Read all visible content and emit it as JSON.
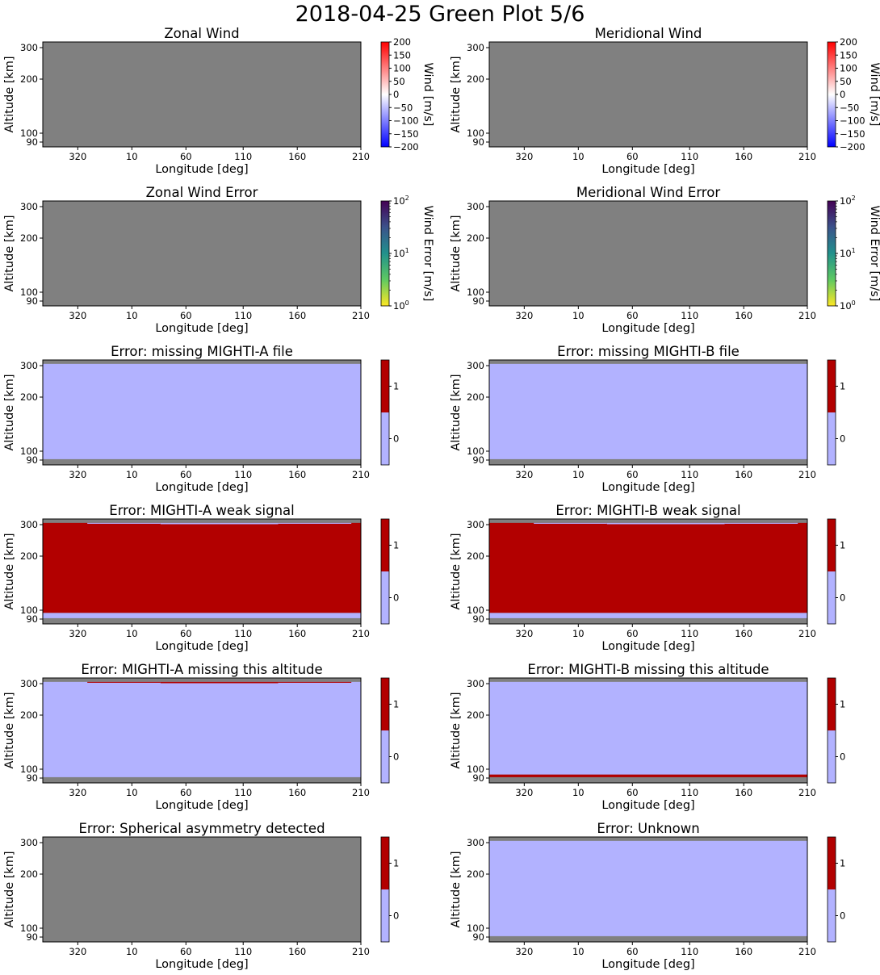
{
  "figure": {
    "title": "2018-04-25 Green Plot 5/6"
  },
  "colors": {
    "missing": "#808080",
    "flag_off": "#b2b2ff",
    "flag_on": "#b20000",
    "frame": "#000000"
  },
  "colormaps": {
    "wind": [
      "#0000ff",
      "#ffffff",
      "#ff0000"
    ],
    "wind_error": [
      "#fde725",
      "#5ec962",
      "#21918c",
      "#3b528b",
      "#440154"
    ],
    "flag": [
      "#b2b2ff",
      "#b20000"
    ]
  },
  "chart_data": [
    {
      "type": "heatmap",
      "title": "Zonal Wind",
      "xlabel": "Longitude [deg]",
      "ylabel": "Altitude [km]",
      "xticks": [
        "320",
        "10",
        "60",
        "110",
        "160",
        "210"
      ],
      "yticks": [
        "90",
        "100",
        "200",
        "300"
      ],
      "ylim": [
        88,
        313
      ],
      "fill": "missing",
      "bands": [],
      "colorbar": {
        "label": "Wind [m/s]",
        "cmap": "wind",
        "scale": "linear",
        "range": [
          -200,
          200
        ],
        "ticks": [
          "200",
          "150",
          "100",
          "50",
          "0",
          "−50",
          "−100",
          "−150",
          "−200"
        ]
      }
    },
    {
      "type": "heatmap",
      "title": "Meridional Wind",
      "xlabel": "Longitude [deg]",
      "ylabel": "Altitude [km]",
      "xticks": [
        "320",
        "10",
        "60",
        "110",
        "160",
        "210"
      ],
      "yticks": [
        "90",
        "100",
        "200",
        "300"
      ],
      "ylim": [
        88,
        313
      ],
      "fill": "missing",
      "bands": [],
      "colorbar": {
        "label": "Wind [m/s]",
        "cmap": "wind",
        "scale": "linear",
        "range": [
          -200,
          200
        ],
        "ticks": [
          "200",
          "150",
          "100",
          "50",
          "0",
          "−50",
          "−100",
          "−150",
          "−200"
        ]
      }
    },
    {
      "type": "heatmap",
      "title": "Zonal Wind Error",
      "xlabel": "Longitude [deg]",
      "ylabel": "Altitude [km]",
      "xticks": [
        "320",
        "10",
        "60",
        "110",
        "160",
        "210"
      ],
      "yticks": [
        "90",
        "100",
        "200",
        "300"
      ],
      "ylim": [
        88,
        313
      ],
      "fill": "missing",
      "bands": [],
      "colorbar": {
        "label": "Wind Error [m/s]",
        "cmap": "wind_error",
        "scale": "log",
        "range": [
          1,
          100
        ],
        "ticks": [
          "10^2",
          "10^1",
          "10^0"
        ]
      }
    },
    {
      "type": "heatmap",
      "title": "Meridional Wind Error",
      "xlabel": "Longitude [deg]",
      "ylabel": "Altitude [km]",
      "xticks": [
        "320",
        "10",
        "60",
        "110",
        "160",
        "210"
      ],
      "yticks": [
        "90",
        "100",
        "200",
        "300"
      ],
      "ylim": [
        88,
        313
      ],
      "fill": "missing",
      "bands": [],
      "colorbar": {
        "label": "Wind Error [m/s]",
        "cmap": "wind_error",
        "scale": "log",
        "range": [
          1,
          100
        ],
        "ticks": [
          "10^2",
          "10^1",
          "10^0"
        ]
      }
    },
    {
      "type": "heatmap",
      "title": "Error: missing MIGHTI-A file",
      "xlabel": "Longitude [deg]",
      "ylabel": "Altitude [km]",
      "xticks": [
        "320",
        "10",
        "60",
        "110",
        "160",
        "210"
      ],
      "yticks": [
        "90",
        "100",
        "200",
        "300"
      ],
      "ylim": [
        88,
        313
      ],
      "fill": "missing",
      "bands": [
        {
          "alt": [
            91,
            304
          ],
          "x": [
            0,
            1
          ],
          "color": "flag_off"
        }
      ],
      "colorbar": {
        "label": "",
        "cmap": "flag",
        "scale": "flag",
        "range": [
          -0.5,
          1.5
        ],
        "ticks": [
          "1",
          "0"
        ]
      }
    },
    {
      "type": "heatmap",
      "title": "Error: missing MIGHTI-B file",
      "xlabel": "Longitude [deg]",
      "ylabel": "Altitude [km]",
      "xticks": [
        "320",
        "10",
        "60",
        "110",
        "160",
        "210"
      ],
      "yticks": [
        "90",
        "100",
        "200",
        "300"
      ],
      "ylim": [
        88,
        313
      ],
      "fill": "missing",
      "bands": [
        {
          "alt": [
            91,
            304
          ],
          "x": [
            0,
            1
          ],
          "color": "flag_off"
        }
      ],
      "colorbar": {
        "label": "",
        "cmap": "flag",
        "scale": "flag",
        "range": [
          -0.5,
          1.5
        ],
        "ticks": [
          "1",
          "0"
        ]
      }
    },
    {
      "type": "heatmap",
      "title": "Error: MIGHTI-A weak signal",
      "xlabel": "Longitude [deg]",
      "ylabel": "Altitude [km]",
      "xticks": [
        "320",
        "10",
        "60",
        "110",
        "160",
        "210"
      ],
      "yticks": [
        "90",
        "100",
        "200",
        "300"
      ],
      "ylim": [
        88,
        313
      ],
      "fill": "missing",
      "bands": [
        {
          "alt": [
            91,
            97
          ],
          "x": [
            0,
            1
          ],
          "color": "flag_off"
        },
        {
          "alt": [
            97,
            304
          ],
          "x": [
            0,
            1
          ],
          "color": "flag_on"
        },
        {
          "alt": [
            302,
            304
          ],
          "x": [
            0.14,
            0.37
          ],
          "color": "flag_off"
        },
        {
          "alt": [
            301,
            304
          ],
          "x": [
            0.37,
            0.74
          ],
          "color": "flag_off"
        },
        {
          "alt": [
            302,
            304
          ],
          "x": [
            0.74,
            0.97
          ],
          "color": "flag_off"
        }
      ],
      "colorbar": {
        "label": "",
        "cmap": "flag",
        "scale": "flag",
        "range": [
          -0.5,
          1.5
        ],
        "ticks": [
          "1",
          "0"
        ]
      }
    },
    {
      "type": "heatmap",
      "title": "Error: MIGHTI-B weak signal",
      "xlabel": "Longitude [deg]",
      "ylabel": "Altitude [km]",
      "xticks": [
        "320",
        "10",
        "60",
        "110",
        "160",
        "210"
      ],
      "yticks": [
        "90",
        "100",
        "200",
        "300"
      ],
      "ylim": [
        88,
        313
      ],
      "fill": "missing",
      "bands": [
        {
          "alt": [
            91,
            97
          ],
          "x": [
            0,
            1
          ],
          "color": "flag_off"
        },
        {
          "alt": [
            97,
            304
          ],
          "x": [
            0,
            1
          ],
          "color": "flag_on"
        },
        {
          "alt": [
            302,
            304
          ],
          "x": [
            0.14,
            0.37
          ],
          "color": "flag_off"
        },
        {
          "alt": [
            301,
            304
          ],
          "x": [
            0.37,
            0.74
          ],
          "color": "flag_off"
        },
        {
          "alt": [
            302,
            304
          ],
          "x": [
            0.74,
            0.97
          ],
          "color": "flag_off"
        }
      ],
      "colorbar": {
        "label": "",
        "cmap": "flag",
        "scale": "flag",
        "range": [
          -0.5,
          1.5
        ],
        "ticks": [
          "1",
          "0"
        ]
      }
    },
    {
      "type": "heatmap",
      "title": "Error: MIGHTI-A missing this altitude",
      "xlabel": "Longitude [deg]",
      "ylabel": "Altitude [km]",
      "xticks": [
        "320",
        "10",
        "60",
        "110",
        "160",
        "210"
      ],
      "yticks": [
        "90",
        "100",
        "200",
        "300"
      ],
      "ylim": [
        88,
        313
      ],
      "fill": "missing",
      "bands": [
        {
          "alt": [
            91,
            304
          ],
          "x": [
            0,
            1
          ],
          "color": "flag_off"
        },
        {
          "alt": [
            302,
            304
          ],
          "x": [
            0.14,
            0.37
          ],
          "color": "flag_on"
        },
        {
          "alt": [
            301,
            304
          ],
          "x": [
            0.37,
            0.74
          ],
          "color": "flag_on"
        },
        {
          "alt": [
            302,
            304
          ],
          "x": [
            0.74,
            0.97
          ],
          "color": "flag_on"
        }
      ],
      "colorbar": {
        "label": "",
        "cmap": "flag",
        "scale": "flag",
        "range": [
          -0.5,
          1.5
        ],
        "ticks": [
          "1",
          "0"
        ]
      }
    },
    {
      "type": "heatmap",
      "title": "Error: MIGHTI-B missing this altitude",
      "xlabel": "Longitude [deg]",
      "ylabel": "Altitude [km]",
      "xticks": [
        "320",
        "10",
        "60",
        "110",
        "160",
        "210"
      ],
      "yticks": [
        "90",
        "100",
        "200",
        "300"
      ],
      "ylim": [
        88,
        313
      ],
      "fill": "missing",
      "bands": [
        {
          "alt": [
            91,
            94
          ],
          "x": [
            0,
            1
          ],
          "color": "flag_on"
        },
        {
          "alt": [
            94,
            304
          ],
          "x": [
            0,
            1
          ],
          "color": "flag_off"
        }
      ],
      "colorbar": {
        "label": "",
        "cmap": "flag",
        "scale": "flag",
        "range": [
          -0.5,
          1.5
        ],
        "ticks": [
          "1",
          "0"
        ]
      }
    },
    {
      "type": "heatmap",
      "title": "Error: Spherical asymmetry detected",
      "xlabel": "Longitude [deg]",
      "ylabel": "Altitude [km]",
      "xticks": [
        "320",
        "10",
        "60",
        "110",
        "160",
        "210"
      ],
      "yticks": [
        "90",
        "100",
        "200",
        "300"
      ],
      "ylim": [
        88,
        313
      ],
      "fill": "missing",
      "bands": [],
      "colorbar": {
        "label": "",
        "cmap": "flag",
        "scale": "flag",
        "range": [
          -0.5,
          1.5
        ],
        "ticks": [
          "1",
          "0"
        ]
      }
    },
    {
      "type": "heatmap",
      "title": "Error: Unknown",
      "xlabel": "Longitude [deg]",
      "ylabel": "Altitude [km]",
      "xticks": [
        "320",
        "10",
        "60",
        "110",
        "160",
        "210"
      ],
      "yticks": [
        "90",
        "100",
        "200",
        "300"
      ],
      "ylim": [
        88,
        313
      ],
      "fill": "missing",
      "bands": [
        {
          "alt": [
            91,
            304
          ],
          "x": [
            0,
            1
          ],
          "color": "flag_off"
        }
      ],
      "colorbar": {
        "label": "",
        "cmap": "flag",
        "scale": "flag",
        "range": [
          -0.5,
          1.5
        ],
        "ticks": [
          "1",
          "0"
        ]
      }
    }
  ]
}
